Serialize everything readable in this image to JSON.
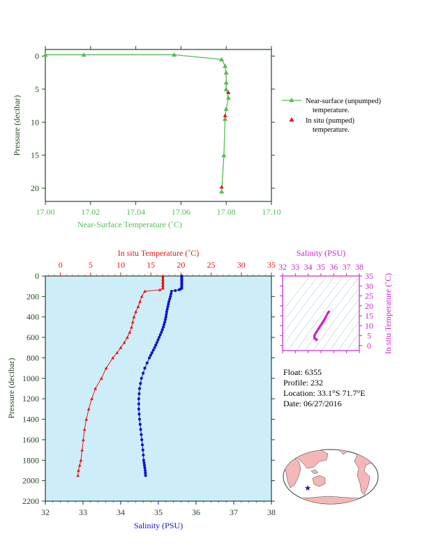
{
  "colors": {
    "green": "#55bb55",
    "red": "#ee1111",
    "blue": "#1111cc",
    "magenta": "#cc22cc",
    "axis_dark": "#224422",
    "plot_bg": "#cdeef8",
    "land": "#f4b6b6"
  },
  "float_info": {
    "float": "Float:  6355",
    "profile": "Profile:  232",
    "location": "Location:  33.1°S  71.7°E",
    "date": "Date:  06/27/2016"
  },
  "map": {
    "marker_icon": "star-icon"
  },
  "chart_data": [
    {
      "type": "line",
      "xlabel": "Near-Surface Temperature (˚C)",
      "ylabel": "Pressure (decibar)",
      "xlim": [
        17.0,
        17.1
      ],
      "ylim": [
        22,
        -1
      ],
      "x_ticks": [
        "17.00",
        "17.02",
        "17.04",
        "17.06",
        "17.08",
        "17.10"
      ],
      "y_ticks": [
        "0",
        "5",
        "10",
        "15",
        "20"
      ],
      "legend_position": "right",
      "series": [
        {
          "name": "Near-surface (unpumped) temperature.",
          "marker": "triangle",
          "color": "#55bb55",
          "x": [
            17.0,
            17.017,
            17.057,
            17.078,
            17.0795,
            17.08,
            17.08,
            17.08,
            17.081,
            17.08,
            17.0795,
            17.079,
            17.078
          ],
          "y": [
            -0.2,
            -0.2,
            -0.2,
            0.5,
            1.5,
            2.5,
            4.0,
            5.0,
            6.3,
            8.0,
            9.5,
            15.0,
            20.5
          ]
        },
        {
          "name": "In situ (pumped) temperature.",
          "marker": "triangle",
          "color": "#ee1111",
          "x": [
            17.081,
            17.0795,
            17.078
          ],
          "y": [
            5.5,
            9.0,
            19.8
          ]
        }
      ]
    },
    {
      "type": "line",
      "xlabel": "Salinity (PSU)",
      "x2label": "In situ Temperature (˚C)",
      "ylabel": "Pressure (decibar)",
      "xlim": [
        32,
        38
      ],
      "x2lim": [
        -2.5,
        35
      ],
      "ylim": [
        2200,
        0
      ],
      "x_ticks": [
        "32",
        "33",
        "34",
        "35",
        "36",
        "37",
        "38"
      ],
      "x2_ticks": [
        "0",
        "5",
        "10",
        "15",
        "20",
        "25",
        "30",
        "35"
      ],
      "y_ticks": [
        "0",
        "200",
        "400",
        "600",
        "800",
        "1000",
        "1200",
        "1400",
        "1600",
        "1800",
        "2000",
        "2200"
      ],
      "temperature": {
        "x": [
          17.0,
          17.0,
          17.0,
          17.0,
          17.0,
          16.5,
          14.0,
          13.5,
          13.2,
          12.9,
          12.5,
          12.2,
          12.0,
          11.8,
          11.5,
          11.1,
          10.6,
          10.0,
          9.4,
          8.7,
          7.6,
          6.8,
          5.8,
          5.2,
          4.7,
          4.3,
          4.0,
          3.8,
          3.6,
          3.4,
          3.2,
          3.0,
          2.9
        ],
        "y": [
          0,
          30,
          60,
          90,
          120,
          135,
          150,
          200,
          250,
          300,
          350,
          400,
          450,
          500,
          550,
          600,
          650,
          700,
          750,
          800,
          900,
          1000,
          1100,
          1200,
          1300,
          1400,
          1500,
          1600,
          1700,
          1800,
          1850,
          1900,
          1950
        ]
      },
      "salinity": {
        "x": [
          35.62,
          35.62,
          35.62,
          35.62,
          35.62,
          35.55,
          35.35,
          35.32,
          35.28,
          35.25,
          35.22,
          35.2,
          35.17,
          35.13,
          35.08,
          35.02,
          34.96,
          34.9,
          34.83,
          34.76,
          34.64,
          34.55,
          34.5,
          34.48,
          34.48,
          34.5,
          34.53,
          34.56,
          34.59,
          34.61,
          34.63,
          34.65,
          34.66
        ],
        "y": [
          0,
          30,
          60,
          90,
          120,
          135,
          150,
          200,
          250,
          300,
          350,
          400,
          450,
          500,
          550,
          600,
          650,
          700,
          750,
          800,
          900,
          1000,
          1100,
          1200,
          1300,
          1400,
          1500,
          1600,
          1700,
          1800,
          1850,
          1900,
          1950
        ]
      }
    },
    {
      "type": "scatter",
      "xlabel": "Salinity (PSU)",
      "ylabel": "In situ Temperature (˚C)",
      "xlim": [
        32,
        38
      ],
      "ylim": [
        -2.5,
        35
      ],
      "x_ticks": [
        "32",
        "33",
        "34",
        "35",
        "36",
        "37",
        "38"
      ],
      "y_ticks": [
        "0",
        "5",
        "10",
        "15",
        "20",
        "25",
        "30",
        "35"
      ],
      "x": [
        35.62,
        35.55,
        35.35,
        35.28,
        35.22,
        35.17,
        35.08,
        34.96,
        34.83,
        34.64,
        34.5,
        34.48,
        34.5,
        34.56,
        34.61,
        34.65,
        34.66
      ],
      "y": [
        17.0,
        16.5,
        14.0,
        13.2,
        12.5,
        12.0,
        11.1,
        10.0,
        8.7,
        6.8,
        5.2,
        4.3,
        3.8,
        3.4,
        3.2,
        3.0,
        2.9
      ]
    }
  ]
}
